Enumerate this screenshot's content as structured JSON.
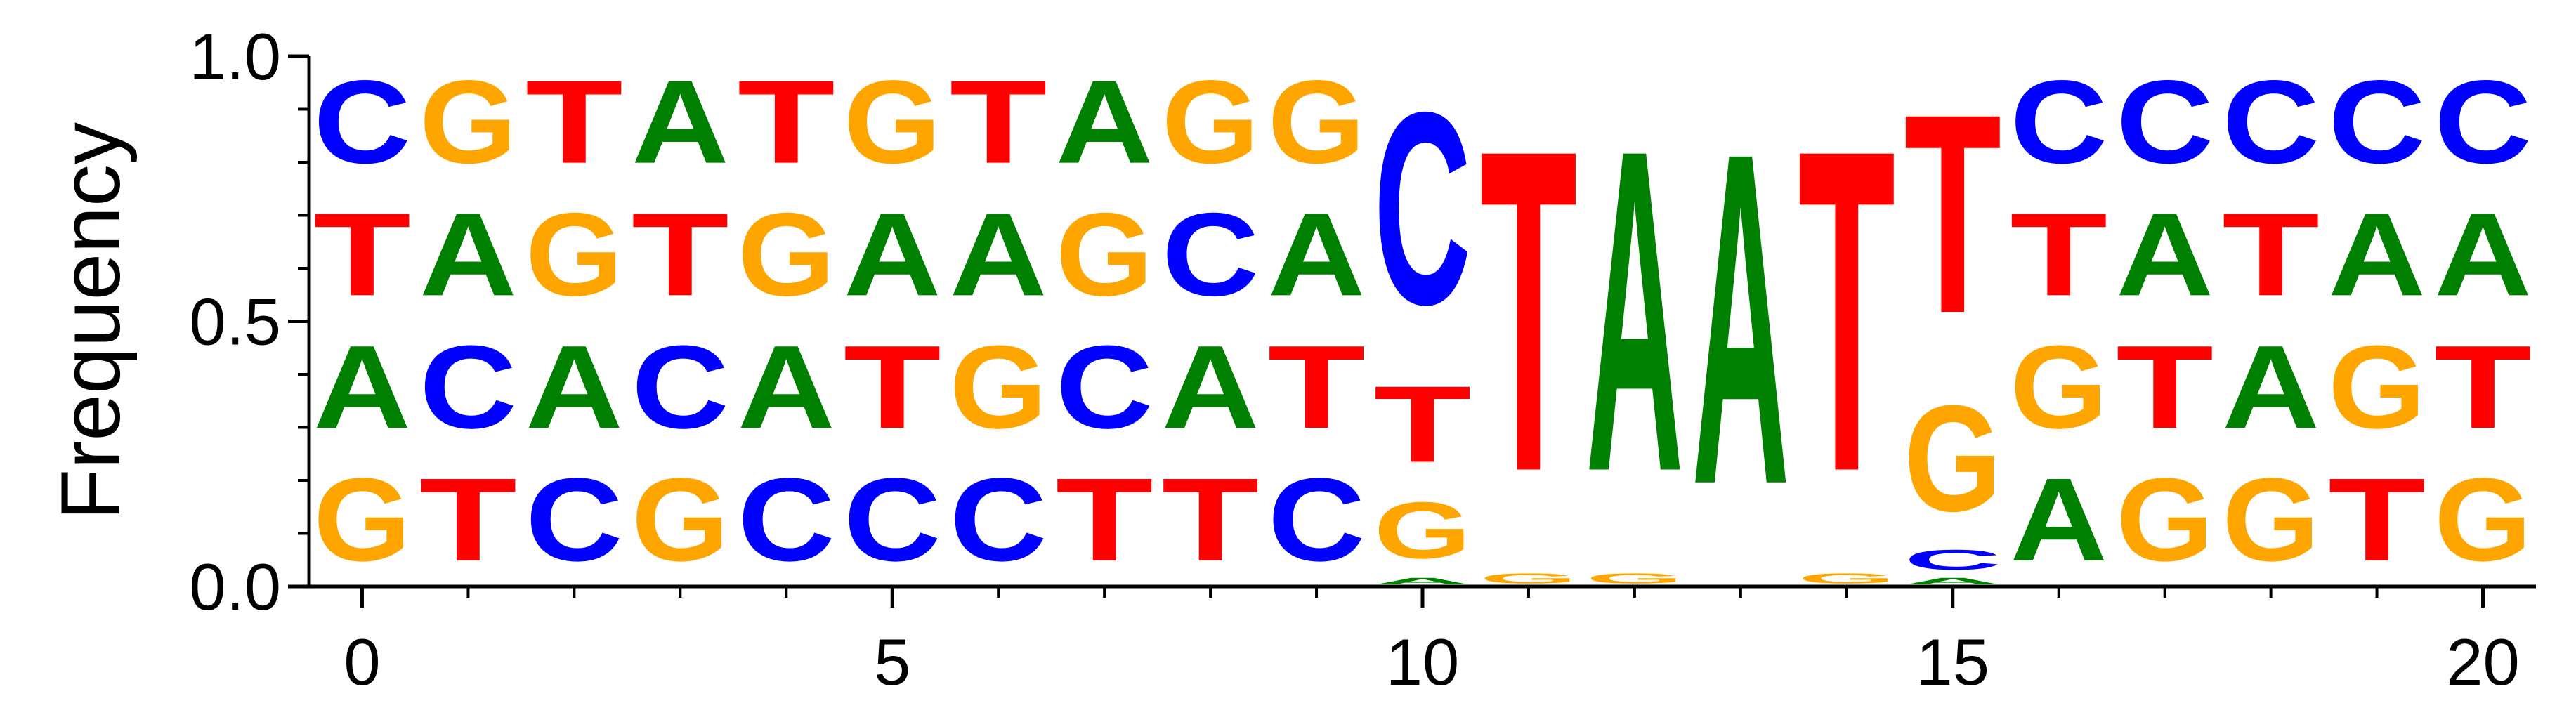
{
  "chart_data": {
    "type": "sequence-logo",
    "ylabel": "Frequency",
    "ylim": [
      0,
      1
    ],
    "xlim": [
      -0.5,
      20.5
    ],
    "y_ticks": [
      "0.0",
      "0.5",
      "1.0"
    ],
    "y_minor_ticks": [
      0.1,
      0.2,
      0.3,
      0.4,
      0.6,
      0.7,
      0.8,
      0.9
    ],
    "x_ticks": [
      "0",
      "5",
      "10",
      "15",
      "20"
    ],
    "x_minor_ticks": [
      1,
      2,
      3,
      4,
      6,
      7,
      8,
      9,
      11,
      12,
      13,
      14,
      16,
      17,
      18,
      19
    ],
    "colors": {
      "A": "#008000",
      "C": "#0000ff",
      "G": "#ffa500",
      "T": "#ff0000"
    },
    "positions": [
      {
        "pos": 0,
        "stack": [
          {
            "base": "G",
            "freq": 0.25
          },
          {
            "base": "A",
            "freq": 0.25
          },
          {
            "base": "T",
            "freq": 0.25
          },
          {
            "base": "C",
            "freq": 0.25
          }
        ]
      },
      {
        "pos": 1,
        "stack": [
          {
            "base": "T",
            "freq": 0.25
          },
          {
            "base": "C",
            "freq": 0.25
          },
          {
            "base": "A",
            "freq": 0.25
          },
          {
            "base": "G",
            "freq": 0.25
          }
        ]
      },
      {
        "pos": 2,
        "stack": [
          {
            "base": "C",
            "freq": 0.25
          },
          {
            "base": "A",
            "freq": 0.25
          },
          {
            "base": "G",
            "freq": 0.25
          },
          {
            "base": "T",
            "freq": 0.25
          }
        ]
      },
      {
        "pos": 3,
        "stack": [
          {
            "base": "G",
            "freq": 0.25
          },
          {
            "base": "C",
            "freq": 0.25
          },
          {
            "base": "T",
            "freq": 0.25
          },
          {
            "base": "A",
            "freq": 0.25
          }
        ]
      },
      {
        "pos": 4,
        "stack": [
          {
            "base": "C",
            "freq": 0.25
          },
          {
            "base": "A",
            "freq": 0.25
          },
          {
            "base": "G",
            "freq": 0.25
          },
          {
            "base": "T",
            "freq": 0.25
          }
        ]
      },
      {
        "pos": 5,
        "stack": [
          {
            "base": "C",
            "freq": 0.25
          },
          {
            "base": "T",
            "freq": 0.25
          },
          {
            "base": "A",
            "freq": 0.25
          },
          {
            "base": "G",
            "freq": 0.25
          }
        ]
      },
      {
        "pos": 6,
        "stack": [
          {
            "base": "C",
            "freq": 0.25
          },
          {
            "base": "G",
            "freq": 0.25
          },
          {
            "base": "A",
            "freq": 0.25
          },
          {
            "base": "T",
            "freq": 0.25
          }
        ]
      },
      {
        "pos": 7,
        "stack": [
          {
            "base": "T",
            "freq": 0.25
          },
          {
            "base": "C",
            "freq": 0.25
          },
          {
            "base": "G",
            "freq": 0.25
          },
          {
            "base": "A",
            "freq": 0.25
          }
        ]
      },
      {
        "pos": 8,
        "stack": [
          {
            "base": "T",
            "freq": 0.25
          },
          {
            "base": "A",
            "freq": 0.25
          },
          {
            "base": "C",
            "freq": 0.25
          },
          {
            "base": "G",
            "freq": 0.25
          }
        ]
      },
      {
        "pos": 9,
        "stack": [
          {
            "base": "C",
            "freq": 0.25
          },
          {
            "base": "T",
            "freq": 0.25
          },
          {
            "base": "A",
            "freq": 0.25
          },
          {
            "base": "G",
            "freq": 0.25
          }
        ]
      },
      {
        "pos": 10,
        "stack": [
          {
            "base": "A",
            "freq": 0.02
          },
          {
            "base": "G",
            "freq": 0.17
          },
          {
            "base": "T",
            "freq": 0.23
          },
          {
            "base": "C",
            "freq": 0.58
          }
        ]
      },
      {
        "pos": 11,
        "stack": [
          {
            "base": "G",
            "freq": 0.03
          },
          {
            "base": "T",
            "freq": 0.97
          }
        ]
      },
      {
        "pos": 12,
        "stack": [
          {
            "base": "G",
            "freq": 0.03
          },
          {
            "base": "A",
            "freq": 0.97
          }
        ]
      },
      {
        "pos": 13,
        "stack": [
          {
            "base": "A",
            "freq": 1.0
          }
        ]
      },
      {
        "pos": 14,
        "stack": [
          {
            "base": "G",
            "freq": 0.03
          },
          {
            "base": "T",
            "freq": 0.97
          }
        ]
      },
      {
        "pos": 15,
        "stack": [
          {
            "base": "A",
            "freq": 0.02
          },
          {
            "base": "C",
            "freq": 0.06
          },
          {
            "base": "G",
            "freq": 0.32
          },
          {
            "base": "T",
            "freq": 0.6
          }
        ]
      },
      {
        "pos": 16,
        "stack": [
          {
            "base": "A",
            "freq": 0.25
          },
          {
            "base": "G",
            "freq": 0.25
          },
          {
            "base": "T",
            "freq": 0.25
          },
          {
            "base": "C",
            "freq": 0.25
          }
        ]
      },
      {
        "pos": 17,
        "stack": [
          {
            "base": "G",
            "freq": 0.25
          },
          {
            "base": "T",
            "freq": 0.25
          },
          {
            "base": "A",
            "freq": 0.25
          },
          {
            "base": "C",
            "freq": 0.25
          }
        ]
      },
      {
        "pos": 18,
        "stack": [
          {
            "base": "G",
            "freq": 0.25
          },
          {
            "base": "A",
            "freq": 0.25
          },
          {
            "base": "T",
            "freq": 0.25
          },
          {
            "base": "C",
            "freq": 0.25
          }
        ]
      },
      {
        "pos": 19,
        "stack": [
          {
            "base": "T",
            "freq": 0.25
          },
          {
            "base": "G",
            "freq": 0.25
          },
          {
            "base": "A",
            "freq": 0.25
          },
          {
            "base": "C",
            "freq": 0.25
          }
        ]
      },
      {
        "pos": 20,
        "stack": [
          {
            "base": "G",
            "freq": 0.25
          },
          {
            "base": "T",
            "freq": 0.25
          },
          {
            "base": "A",
            "freq": 0.25
          },
          {
            "base": "C",
            "freq": 0.25
          }
        ]
      }
    ]
  }
}
